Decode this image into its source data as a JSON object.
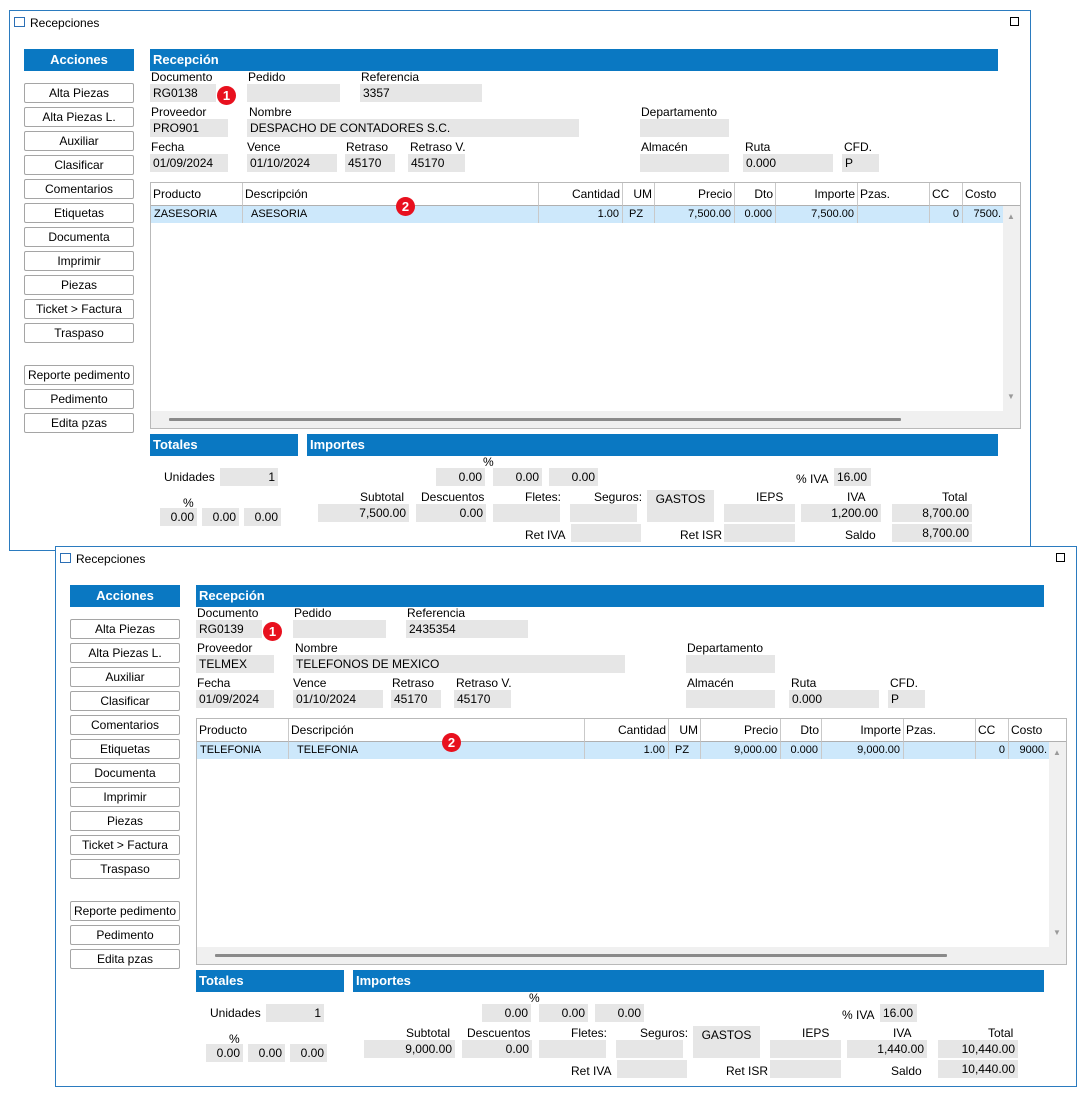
{
  "windows": [
    {
      "title": "Recepciones",
      "acciones": {
        "header": "Acciones",
        "buttons": [
          "Alta Piezas",
          "Alta Piezas L.",
          "Auxiliar",
          "Clasificar",
          "Comentarios",
          "Etiquetas",
          "Documenta",
          "Imprimir",
          "Piezas",
          "Ticket > Factura",
          "Traspaso"
        ],
        "buttons2": [
          "Reporte pedimento",
          "Pedimento",
          "Edita pzas"
        ]
      },
      "recepcion": {
        "header": "Recepción",
        "documento_label": "Documento",
        "documento": "RG0138",
        "pedido_label": "Pedido",
        "pedido": "",
        "referencia_label": "Referencia",
        "referencia": "3357",
        "proveedor_label": "Proveedor",
        "proveedor": "PRO901",
        "nombre_label": "Nombre",
        "nombre": "DESPACHO DE CONTADORES S.C.",
        "departamento_label": "Departamento",
        "departamento": "",
        "fecha_label": "Fecha",
        "fecha": "01/09/2024",
        "vence_label": "Vence",
        "vence": "01/10/2024",
        "retraso_label": "Retraso",
        "retraso": "45170",
        "retraso_v_label": "Retraso V.",
        "retraso_v": "45170",
        "almacen_label": "Almacén",
        "almacen": "",
        "ruta_label": "Ruta",
        "ruta": "0.000",
        "cfd_label": "CFD.",
        "cfd": "P"
      },
      "badges": [
        "1",
        "2"
      ],
      "grid": {
        "columns": [
          "Producto",
          "Descripción",
          "Cantidad",
          "UM",
          "Precio",
          "Dto",
          "Importe",
          "Pzas.",
          "CC",
          "Costo"
        ],
        "rows": [
          {
            "producto": "ZASESORIA",
            "descripcion": "ASESORIA",
            "cantidad": "1.00",
            "um": "PZ",
            "precio": "7,500.00",
            "dto": "0.000",
            "importe": "7,500.00",
            "pzas": "",
            "cc": "0",
            "costo": "7500."
          }
        ]
      },
      "totales": {
        "header": "Totales",
        "unidades_label": "Unidades",
        "unidades": "1",
        "pct_label": "%",
        "pct1": "0.00",
        "pct2": "0.00",
        "pct3": "0.00"
      },
      "importes": {
        "header": "Importes",
        "pct_label": "%",
        "imp_pct1": "0.00",
        "imp_pct2": "0.00",
        "imp_pct3": "0.00",
        "pct_iva_label": "% IVA",
        "pct_iva": "16.00",
        "subtotal_label": "Subtotal",
        "subtotal": "7,500.00",
        "descuentos_label": "Descuentos",
        "descuentos": "0.00",
        "fletes_label": "Fletes:",
        "fletes": "",
        "seguros_label": "Seguros:",
        "seguros": "",
        "gastos_label": "GASTOS",
        "ieps_label": "IEPS",
        "ieps": "",
        "iva_label": "IVA",
        "iva": "1,200.00",
        "total_label": "Total",
        "total": "8,700.00",
        "ret_iva_label": "Ret IVA",
        "ret_iva": "",
        "ret_isr_label": "Ret ISR",
        "ret_isr": "",
        "saldo_label": "Saldo",
        "saldo": "8,700.00"
      }
    },
    {
      "title": "Recepciones",
      "acciones": {
        "header": "Acciones",
        "buttons": [
          "Alta Piezas",
          "Alta Piezas L.",
          "Auxiliar",
          "Clasificar",
          "Comentarios",
          "Etiquetas",
          "Documenta",
          "Imprimir",
          "Piezas",
          "Ticket > Factura",
          "Traspaso"
        ],
        "buttons2": [
          "Reporte pedimento",
          "Pedimento",
          "Edita pzas"
        ]
      },
      "recepcion": {
        "header": "Recepción",
        "documento_label": "Documento",
        "documento": "RG0139",
        "pedido_label": "Pedido",
        "pedido": "",
        "referencia_label": "Referencia",
        "referencia": "2435354",
        "proveedor_label": "Proveedor",
        "proveedor": "TELMEX",
        "nombre_label": "Nombre",
        "nombre": "TELEFONOS DE MEXICO",
        "departamento_label": "Departamento",
        "departamento": "",
        "fecha_label": "Fecha",
        "fecha": "01/09/2024",
        "vence_label": "Vence",
        "vence": "01/10/2024",
        "retraso_label": "Retraso",
        "retraso": "45170",
        "retraso_v_label": "Retraso V.",
        "retraso_v": "45170",
        "almacen_label": "Almacén",
        "almacen": "",
        "ruta_label": "Ruta",
        "ruta": "0.000",
        "cfd_label": "CFD.",
        "cfd": "P"
      },
      "badges": [
        "1",
        "2"
      ],
      "grid": {
        "columns": [
          "Producto",
          "Descripción",
          "Cantidad",
          "UM",
          "Precio",
          "Dto",
          "Importe",
          "Pzas.",
          "CC",
          "Costo"
        ],
        "rows": [
          {
            "producto": "TELEFONIA",
            "descripcion": "TELEFONIA",
            "cantidad": "1.00",
            "um": "PZ",
            "precio": "9,000.00",
            "dto": "0.000",
            "importe": "9,000.00",
            "pzas": "",
            "cc": "0",
            "costo": "9000."
          }
        ]
      },
      "totales": {
        "header": "Totales",
        "unidades_label": "Unidades",
        "unidades": "1",
        "pct_label": "%",
        "pct1": "0.00",
        "pct2": "0.00",
        "pct3": "0.00"
      },
      "importes": {
        "header": "Importes",
        "pct_label": "%",
        "imp_pct1": "0.00",
        "imp_pct2": "0.00",
        "imp_pct3": "0.00",
        "pct_iva_label": "% IVA",
        "pct_iva": "16.00",
        "subtotal_label": "Subtotal",
        "subtotal": "9,000.00",
        "descuentos_label": "Descuentos",
        "descuentos": "0.00",
        "fletes_label": "Fletes:",
        "fletes": "",
        "seguros_label": "Seguros:",
        "seguros": "",
        "gastos_label": "GASTOS",
        "ieps_label": "IEPS",
        "ieps": "",
        "iva_label": "IVA",
        "iva": "1,440.00",
        "total_label": "Total",
        "total": "10,440.00",
        "ret_iva_label": "Ret IVA",
        "ret_iva": "",
        "ret_isr_label": "Ret ISR",
        "ret_isr": "",
        "saldo_label": "Saldo",
        "saldo": "10,440.00"
      }
    }
  ]
}
